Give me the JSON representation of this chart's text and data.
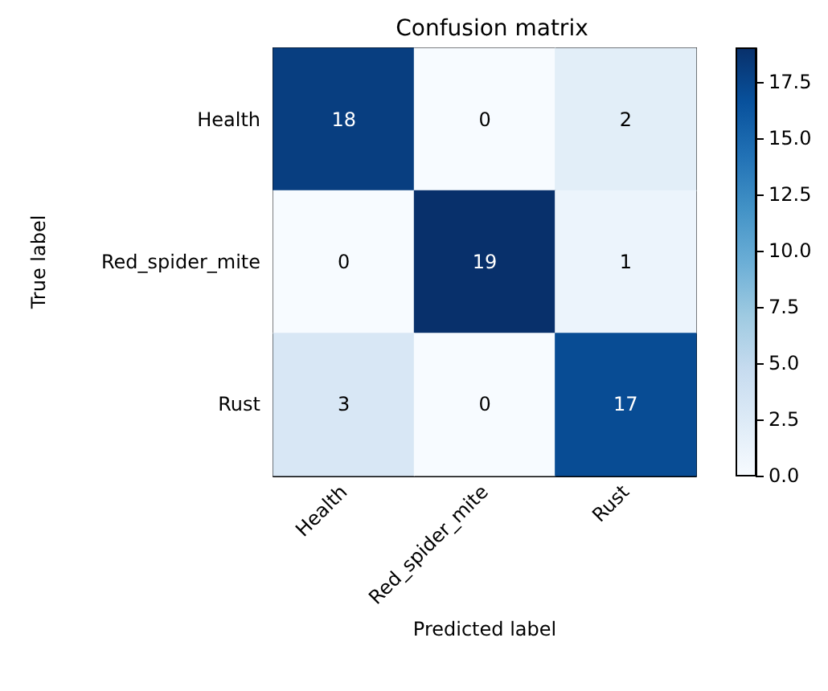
{
  "chart_data": {
    "type": "heatmap",
    "title": "Confusion matrix",
    "xlabel": "Predicted label",
    "ylabel": "True label",
    "categories": [
      "Health",
      "Red_spider_mite",
      "Rust"
    ],
    "y_categories": [
      "Health",
      "Red_spider_mite",
      "Rust"
    ],
    "cells": [
      [
        18,
        0,
        2
      ],
      [
        0,
        19,
        1
      ],
      [
        3,
        0,
        17
      ]
    ],
    "clim": [
      0,
      19
    ],
    "cticks": [
      {
        "value": 0,
        "label": "0.0"
      },
      {
        "value": 2.5,
        "label": "2.5"
      },
      {
        "value": 5,
        "label": "5.0"
      },
      {
        "value": 7.5,
        "label": "7.5"
      },
      {
        "value": 10,
        "label": "10.0"
      },
      {
        "value": 12.5,
        "label": "12.5"
      },
      {
        "value": 15,
        "label": "15.0"
      },
      {
        "value": 17.5,
        "label": "17.5"
      }
    ],
    "data_labels": true
  }
}
